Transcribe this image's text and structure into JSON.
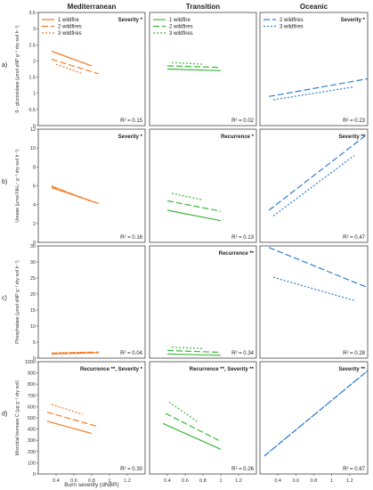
{
  "columns": [
    "Mediterranean",
    "Transition",
    "Oceanic"
  ],
  "row_labels": [
    "a)",
    "b)",
    "c)",
    "d)"
  ],
  "xlabel": "Burn severity (dNBR)",
  "colors": {
    "Mediterranean": "#f47b20",
    "Transition": "#3cb83c",
    "Oceanic": "#2f7fd0"
  },
  "legends": [
    {
      "column": 0,
      "entries": [
        {
          "label": "1 wildfire",
          "style": "solid"
        },
        {
          "label": "2 wildfires",
          "style": "dashed"
        },
        {
          "label": "3 wildfires",
          "style": "dotted"
        }
      ]
    },
    {
      "column": 1,
      "entries": [
        {
          "label": "1 wildfire",
          "style": "solid"
        },
        {
          "label": "2 wildfires",
          "style": "dashed"
        },
        {
          "label": "3 wildfires",
          "style": "dotted"
        }
      ]
    },
    {
      "column": 2,
      "entries": [
        {
          "label": "2 wildfires",
          "style": "dashed"
        },
        {
          "label": "3 wildfires",
          "style": "dotted"
        }
      ]
    }
  ],
  "chart_data": [
    {
      "type": "line",
      "row": 0,
      "ylabel": "ß - glucosidase (µmol pNP g⁻¹ dry soil h⁻¹)",
      "ylim": [
        0,
        3.5
      ],
      "yticks": [
        "0",
        "0.5",
        "1",
        "1.5",
        "2",
        "2.5",
        "3",
        "3.5"
      ],
      "xlim": [
        0.2,
        1.4
      ],
      "xticks": [
        "0.4",
        "0.6",
        "0.8",
        "1",
        "1.2"
      ],
      "panels": [
        {
          "column": 0,
          "annotation": "Severity *",
          "r2": "R² = 0.15",
          "series": [
            {
              "name": "1 wildfire",
              "style": "solid",
              "x": [
                0.35,
                0.8
              ],
              "y": [
                2.3,
                1.85
              ]
            },
            {
              "name": "2 wildfires",
              "style": "dashed",
              "x": [
                0.35,
                0.88
              ],
              "y": [
                2.05,
                1.6
              ]
            },
            {
              "name": "3 wildfires",
              "style": "dotted",
              "x": [
                0.4,
                0.7
              ],
              "y": [
                1.9,
                1.6
              ]
            }
          ]
        },
        {
          "column": 1,
          "annotation": "",
          "r2": "R² = 0.02",
          "series": [
            {
              "name": "1 wildfire",
              "style": "solid",
              "x": [
                0.4,
                1.0
              ],
              "y": [
                1.75,
                1.7
              ]
            },
            {
              "name": "2 wildfires",
              "style": "dashed",
              "x": [
                0.4,
                1.0
              ],
              "y": [
                1.85,
                1.8
              ]
            },
            {
              "name": "3 wildfires",
              "style": "dotted",
              "x": [
                0.45,
                0.8
              ],
              "y": [
                1.95,
                1.9
              ]
            }
          ]
        },
        {
          "column": 2,
          "annotation": "Severity *",
          "r2": "R² = 0.23",
          "series": [
            {
              "name": "2 wildfires",
              "style": "dashed",
              "x": [
                0.3,
                1.4
              ],
              "y": [
                0.9,
                1.45
              ]
            },
            {
              "name": "3 wildfires",
              "style": "dotted",
              "x": [
                0.35,
                1.25
              ],
              "y": [
                0.8,
                1.2
              ]
            }
          ]
        }
      ]
    },
    {
      "type": "line",
      "row": 1,
      "ylabel": "Urease (µmol NH₄⁺ g⁻¹ dry soil h⁻¹)",
      "ylim": [
        0,
        12
      ],
      "yticks": [
        "0",
        "2",
        "4",
        "6",
        "8",
        "10",
        "12"
      ],
      "xlim": [
        0.2,
        1.4
      ],
      "xticks": [
        "0.4",
        "0.6",
        "0.8",
        "1",
        "1.2"
      ],
      "panels": [
        {
          "column": 0,
          "annotation": "Severity *",
          "r2": "R² = 0.16",
          "series": [
            {
              "name": "1 wildfire",
              "style": "solid",
              "x": [
                0.35,
                0.85
              ],
              "y": [
                5.8,
                4.2
              ]
            },
            {
              "name": "2 wildfires",
              "style": "dashed",
              "x": [
                0.35,
                0.88
              ],
              "y": [
                5.9,
                4.1
              ]
            },
            {
              "name": "3 wildfires",
              "style": "dotted",
              "x": [
                0.35,
                0.8
              ],
              "y": [
                6.0,
                4.3
              ]
            }
          ]
        },
        {
          "column": 1,
          "annotation": "Recurrence *",
          "r2": "R² = 0.13",
          "series": [
            {
              "name": "1 wildfire",
              "style": "solid",
              "x": [
                0.4,
                1.0
              ],
              "y": [
                3.4,
                2.3
              ]
            },
            {
              "name": "2 wildfires",
              "style": "dashed",
              "x": [
                0.4,
                1.0
              ],
              "y": [
                4.4,
                3.3
              ]
            },
            {
              "name": "3 wildfires",
              "style": "dotted",
              "x": [
                0.45,
                0.8
              ],
              "y": [
                5.2,
                4.5
              ]
            }
          ]
        },
        {
          "column": 2,
          "annotation": "Severity **",
          "r2": "R² = 0.47",
          "series": [
            {
              "name": "2 wildfires",
              "style": "dashed",
              "x": [
                0.3,
                1.4
              ],
              "y": [
                3.4,
                11.5
              ]
            },
            {
              "name": "3 wildfires",
              "style": "dotted",
              "x": [
                0.35,
                1.25
              ],
              "y": [
                2.8,
                9.2
              ]
            }
          ]
        }
      ]
    },
    {
      "type": "line",
      "row": 2,
      "ylabel": "Phosphatase (µmol pNP g⁻¹ dry soil h⁻¹)",
      "ylim": [
        0,
        35
      ],
      "yticks": [
        "0",
        "5",
        "10",
        "15",
        "20",
        "25",
        "30",
        "35"
      ],
      "xlim": [
        0.2,
        1.4
      ],
      "xticks": [
        "0.4",
        "0.6",
        "0.8",
        "1",
        "1.2"
      ],
      "panels": [
        {
          "column": 0,
          "annotation": "",
          "r2": "R² = 0.04",
          "series": [
            {
              "name": "1 wildfire",
              "style": "solid",
              "x": [
                0.35,
                0.88
              ],
              "y": [
                1.3,
                1.7
              ]
            },
            {
              "name": "2 wildfires",
              "style": "dashed",
              "x": [
                0.35,
                0.88
              ],
              "y": [
                1.5,
                1.9
              ]
            },
            {
              "name": "3 wildfires",
              "style": "dotted",
              "x": [
                0.35,
                0.8
              ],
              "y": [
                1.6,
                1.9
              ]
            }
          ]
        },
        {
          "column": 1,
          "annotation": "Recurrence **",
          "r2": "R² = 0.34",
          "series": [
            {
              "name": "1 wildfire",
              "style": "solid",
              "x": [
                0.4,
                1.0
              ],
              "y": [
                1.3,
                0.9
              ]
            },
            {
              "name": "2 wildfires",
              "style": "dashed",
              "x": [
                0.4,
                1.0
              ],
              "y": [
                2.4,
                1.8
              ]
            },
            {
              "name": "3 wildfires",
              "style": "dotted",
              "x": [
                0.45,
                0.8
              ],
              "y": [
                3.4,
                3.0
              ]
            }
          ]
        },
        {
          "column": 2,
          "annotation": "",
          "r2": "R² = 0.28",
          "series": [
            {
              "name": "2 wildfires",
              "style": "dashed",
              "x": [
                0.3,
                1.4
              ],
              "y": [
                34.5,
                22.0
              ]
            },
            {
              "name": "3 wildfires",
              "style": "dotted",
              "x": [
                0.35,
                1.25
              ],
              "y": [
                25.2,
                18.0
              ]
            }
          ]
        }
      ]
    },
    {
      "type": "line",
      "row": 3,
      "ylabel": "Microbial biomass C (µg g⁻¹ dry soil)",
      "ylim": [
        0,
        1000
      ],
      "yticks": [
        "0",
        "100",
        "200",
        "300",
        "400",
        "500",
        "600",
        "700",
        "800",
        "900",
        "1000"
      ],
      "xlim": [
        0.2,
        1.4
      ],
      "xticks": [
        "0.4",
        "0.6",
        "0.8",
        "1",
        "1.2"
      ],
      "panels": [
        {
          "column": 0,
          "annotation": "Recurrence **, Severity *",
          "r2": "R² = 0.30",
          "series": [
            {
              "name": "1 wildfire",
              "style": "solid",
              "x": [
                0.3,
                0.8
              ],
              "y": [
                470,
                360
              ]
            },
            {
              "name": "2 wildfires",
              "style": "dashed",
              "x": [
                0.3,
                0.88
              ],
              "y": [
                550,
                420
              ]
            },
            {
              "name": "3 wildfires",
              "style": "dotted",
              "x": [
                0.35,
                0.7
              ],
              "y": [
                620,
                530
              ]
            }
          ]
        },
        {
          "column": 1,
          "annotation": "Recurrence **, Severity **",
          "r2": "R² = 0.26",
          "series": [
            {
              "name": "1 wildfire",
              "style": "solid",
              "x": [
                0.35,
                1.0
              ],
              "y": [
                450,
                220
              ]
            },
            {
              "name": "2 wildfires",
              "style": "dashed",
              "x": [
                0.38,
                1.0
              ],
              "y": [
                540,
                290
              ]
            },
            {
              "name": "3 wildfires",
              "style": "dotted",
              "x": [
                0.42,
                0.75
              ],
              "y": [
                640,
                460
              ]
            }
          ]
        },
        {
          "column": 2,
          "annotation": "Severity **",
          "r2": "R² = 0.67",
          "series": [
            {
              "name": "2 wildfires",
              "style": "dashed",
              "x": [
                0.25,
                1.4
              ],
              "y": [
                160,
                920
              ]
            },
            {
              "name": "3 wildfires",
              "style": "dotted",
              "x": [
                0.25,
                1.4
              ],
              "y": [
                162,
                920
              ]
            }
          ]
        }
      ]
    }
  ]
}
